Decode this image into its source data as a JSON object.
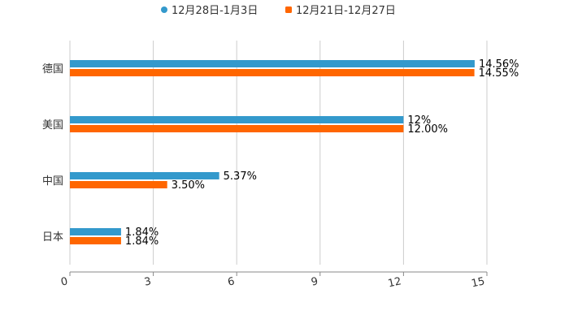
{
  "chart_data": {
    "type": "bar",
    "orientation": "horizontal",
    "categories": [
      "德国",
      "美国",
      "中国",
      "日本"
    ],
    "series": [
      {
        "name": "12月28日-1月3日",
        "color": "#3399cc",
        "values": [
          14.56,
          12,
          5.37,
          1.84
        ],
        "labels": [
          "14.56%",
          "12%",
          "5.37%",
          "1.84%"
        ]
      },
      {
        "name": "12月21日-12月27日",
        "color": "#ff6600",
        "values": [
          14.55,
          12.0,
          3.5,
          1.84
        ],
        "labels": [
          "14.55%",
          "12.00%",
          "3.50%",
          "1.84%"
        ]
      }
    ],
    "xlim": [
      0,
      15
    ],
    "xticks": [
      "0",
      "3",
      "6",
      "9",
      "12",
      "15"
    ],
    "grid": true,
    "legend": "top-center",
    "title": "",
    "xlabel": "",
    "ylabel": ""
  }
}
